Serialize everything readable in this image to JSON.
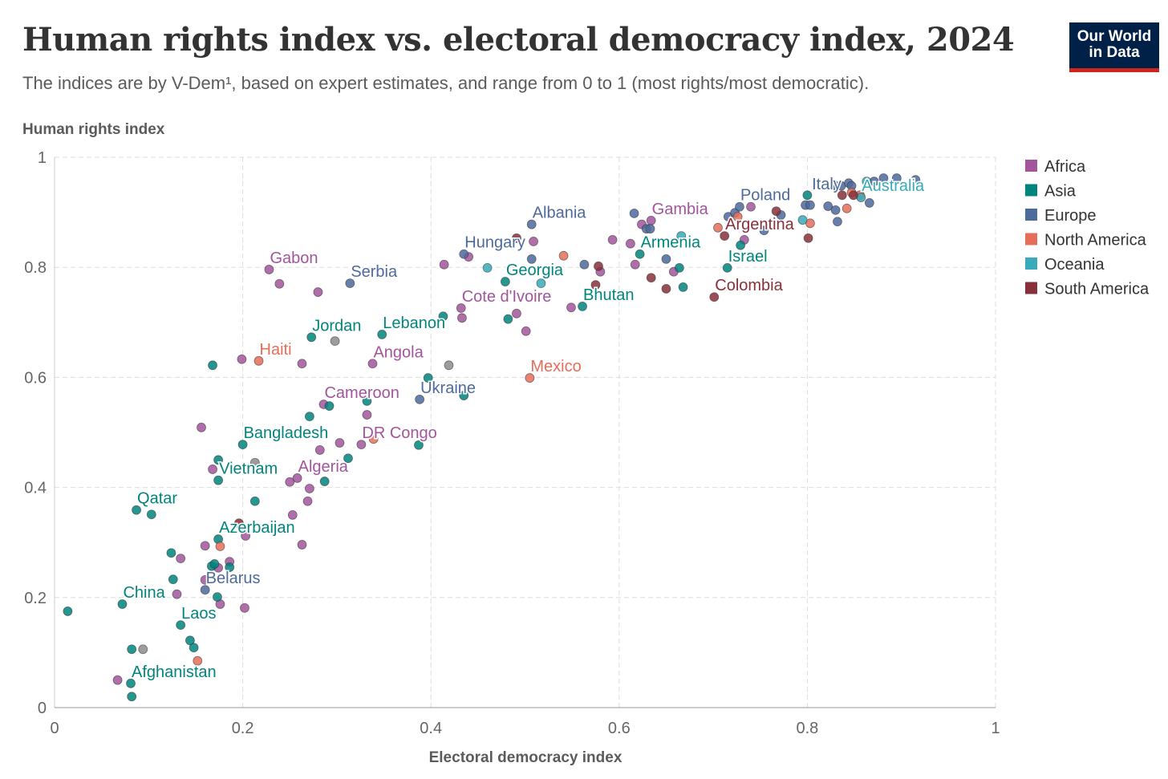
{
  "title": "Human rights index vs. electoral democracy index, 2024",
  "subtitle": "The indices are by V-Dem¹, based on expert estimates, and range from 0 to 1 (most rights/most democratic).",
  "logo": {
    "line1": "Our World",
    "line2": "in Data"
  },
  "chart_data": {
    "type": "scatter",
    "title": "Human rights index vs. electoral democracy index, 2024",
    "xlabel": "Electoral democracy index",
    "ylabel": "Human rights index",
    "xlim": [
      0,
      1
    ],
    "ylim": [
      0,
      1
    ],
    "xticks": [
      "0",
      "0.2",
      "0.4",
      "0.6",
      "0.8",
      "1"
    ],
    "yticks": [
      "0",
      "0.2",
      "0.4",
      "0.6",
      "0.8",
      "1"
    ],
    "grid": true,
    "legend_position": "right",
    "regions": [
      {
        "name": "Africa",
        "color": "#a2559c"
      },
      {
        "name": "Asia",
        "color": "#00847e"
      },
      {
        "name": "Europe",
        "color": "#4c6a9c"
      },
      {
        "name": "North America",
        "color": "#e56e5a"
      },
      {
        "name": "Oceania",
        "color": "#38aaba"
      },
      {
        "name": "South America",
        "color": "#883039"
      }
    ],
    "other_color": "#8c8c8c",
    "points": [
      {
        "r": "Africa",
        "x": 0.228,
        "y": 0.796,
        "label": "Gabon"
      },
      {
        "r": "Africa",
        "x": 0.239,
        "y": 0.77
      },
      {
        "r": "Africa",
        "x": 0.28,
        "y": 0.755
      },
      {
        "r": "Africa",
        "x": 0.199,
        "y": 0.633
      },
      {
        "r": "Africa",
        "x": 0.263,
        "y": 0.625
      },
      {
        "r": "Africa",
        "x": 0.338,
        "y": 0.625,
        "label": "Angola"
      },
      {
        "r": "Africa",
        "x": 0.156,
        "y": 0.509
      },
      {
        "r": "Africa",
        "x": 0.168,
        "y": 0.433
      },
      {
        "r": "Africa",
        "x": 0.286,
        "y": 0.551,
        "label": "Cameroon"
      },
      {
        "r": "Africa",
        "x": 0.332,
        "y": 0.532
      },
      {
        "r": "Africa",
        "x": 0.303,
        "y": 0.481
      },
      {
        "r": "Africa",
        "x": 0.326,
        "y": 0.478,
        "label": "DR Congo"
      },
      {
        "r": "Africa",
        "x": 0.282,
        "y": 0.468
      },
      {
        "r": "Africa",
        "x": 0.25,
        "y": 0.41
      },
      {
        "r": "Africa",
        "x": 0.258,
        "y": 0.417,
        "label": "Algeria"
      },
      {
        "r": "Africa",
        "x": 0.271,
        "y": 0.398
      },
      {
        "r": "Africa",
        "x": 0.269,
        "y": 0.375
      },
      {
        "r": "Africa",
        "x": 0.253,
        "y": 0.35
      },
      {
        "r": "Africa",
        "x": 0.203,
        "y": 0.312
      },
      {
        "r": "Africa",
        "x": 0.16,
        "y": 0.294
      },
      {
        "r": "Africa",
        "x": 0.263,
        "y": 0.296
      },
      {
        "r": "Africa",
        "x": 0.134,
        "y": 0.271
      },
      {
        "r": "Africa",
        "x": 0.186,
        "y": 0.265
      },
      {
        "r": "Africa",
        "x": 0.174,
        "y": 0.254
      },
      {
        "r": "Africa",
        "x": 0.16,
        "y": 0.232
      },
      {
        "r": "Africa",
        "x": 0.13,
        "y": 0.206
      },
      {
        "r": "Africa",
        "x": 0.176,
        "y": 0.188
      },
      {
        "r": "Africa",
        "x": 0.202,
        "y": 0.181
      },
      {
        "r": "Africa",
        "x": 0.067,
        "y": 0.05
      },
      {
        "r": "Africa",
        "x": 0.414,
        "y": 0.805
      },
      {
        "r": "Africa",
        "x": 0.44,
        "y": 0.819
      },
      {
        "r": "Africa",
        "x": 0.509,
        "y": 0.847
      },
      {
        "r": "Africa",
        "x": 0.432,
        "y": 0.726,
        "label": "Cote d'Ivoire"
      },
      {
        "r": "Africa",
        "x": 0.433,
        "y": 0.708
      },
      {
        "r": "Africa",
        "x": 0.491,
        "y": 0.716
      },
      {
        "r": "Africa",
        "x": 0.501,
        "y": 0.684
      },
      {
        "r": "Africa",
        "x": 0.549,
        "y": 0.727
      },
      {
        "r": "Africa",
        "x": 0.58,
        "y": 0.792
      },
      {
        "r": "Africa",
        "x": 0.593,
        "y": 0.85
      },
      {
        "r": "Africa",
        "x": 0.612,
        "y": 0.843
      },
      {
        "r": "Africa",
        "x": 0.617,
        "y": 0.805
      },
      {
        "r": "Africa",
        "x": 0.624,
        "y": 0.878
      },
      {
        "r": "Africa",
        "x": 0.634,
        "y": 0.885,
        "label": "Gambia"
      },
      {
        "r": "Africa",
        "x": 0.658,
        "y": 0.792
      },
      {
        "r": "Africa",
        "x": 0.733,
        "y": 0.85
      },
      {
        "r": "Africa",
        "x": 0.74,
        "y": 0.91
      },
      {
        "r": "Asia",
        "x": 0.014,
        "y": 0.175
      },
      {
        "r": "Asia",
        "x": 0.072,
        "y": 0.188,
        "label": "China"
      },
      {
        "r": "Asia",
        "x": 0.087,
        "y": 0.359,
        "label": "Qatar"
      },
      {
        "r": "Asia",
        "x": 0.103,
        "y": 0.351
      },
      {
        "r": "Asia",
        "x": 0.082,
        "y": 0.106
      },
      {
        "r": "Asia",
        "x": 0.081,
        "y": 0.044,
        "label": "Afghanistan"
      },
      {
        "r": "Asia",
        "x": 0.082,
        "y": 0.02
      },
      {
        "r": "Asia",
        "x": 0.124,
        "y": 0.281
      },
      {
        "r": "Asia",
        "x": 0.126,
        "y": 0.233
      },
      {
        "r": "Asia",
        "x": 0.134,
        "y": 0.15,
        "label": "Laos"
      },
      {
        "r": "Asia",
        "x": 0.144,
        "y": 0.122
      },
      {
        "r": "Asia",
        "x": 0.148,
        "y": 0.109
      },
      {
        "r": "Asia",
        "x": 0.168,
        "y": 0.622
      },
      {
        "r": "Asia",
        "x": 0.174,
        "y": 0.45
      },
      {
        "r": "Asia",
        "x": 0.174,
        "y": 0.413,
        "label": "Vietnam"
      },
      {
        "r": "Asia",
        "x": 0.174,
        "y": 0.306,
        "label": "Azerbaijan"
      },
      {
        "r": "Asia",
        "x": 0.167,
        "y": 0.257
      },
      {
        "r": "Asia",
        "x": 0.17,
        "y": 0.261
      },
      {
        "r": "Asia",
        "x": 0.186,
        "y": 0.255
      },
      {
        "r": "Asia",
        "x": 0.173,
        "y": 0.201
      },
      {
        "r": "Asia",
        "x": 0.2,
        "y": 0.478,
        "label": "Bangladesh"
      },
      {
        "r": "Asia",
        "x": 0.213,
        "y": 0.375
      },
      {
        "r": "Asia",
        "x": 0.271,
        "y": 0.529
      },
      {
        "r": "Asia",
        "x": 0.292,
        "y": 0.548
      },
      {
        "r": "Asia",
        "x": 0.287,
        "y": 0.411
      },
      {
        "r": "Asia",
        "x": 0.312,
        "y": 0.453
      },
      {
        "r": "Asia",
        "x": 0.273,
        "y": 0.673,
        "label": "Jordan"
      },
      {
        "r": "Asia",
        "x": 0.348,
        "y": 0.678,
        "label": "Lebanon"
      },
      {
        "r": "Asia",
        "x": 0.332,
        "y": 0.557
      },
      {
        "r": "Asia",
        "x": 0.387,
        "y": 0.477
      },
      {
        "r": "Asia",
        "x": 0.397,
        "y": 0.599
      },
      {
        "r": "Asia",
        "x": 0.435,
        "y": 0.567
      },
      {
        "r": "Asia",
        "x": 0.413,
        "y": 0.711
      },
      {
        "r": "Asia",
        "x": 0.479,
        "y": 0.774,
        "label": "Georgia"
      },
      {
        "r": "Asia",
        "x": 0.482,
        "y": 0.706
      },
      {
        "r": "Asia",
        "x": 0.561,
        "y": 0.729,
        "label": "Bhutan"
      },
      {
        "r": "Asia",
        "x": 0.622,
        "y": 0.824,
        "label": "Armenia"
      },
      {
        "r": "Asia",
        "x": 0.664,
        "y": 0.799
      },
      {
        "r": "Asia",
        "x": 0.668,
        "y": 0.764
      },
      {
        "r": "Asia",
        "x": 0.715,
        "y": 0.799,
        "label": "Israel"
      },
      {
        "r": "Asia",
        "x": 0.729,
        "y": 0.84
      },
      {
        "r": "Asia",
        "x": 0.8,
        "y": 0.931
      },
      {
        "r": "Europe",
        "x": 0.16,
        "y": 0.214,
        "label": "Belarus"
      },
      {
        "r": "Europe",
        "x": 0.314,
        "y": 0.771,
        "label": "Serbia"
      },
      {
        "r": "Europe",
        "x": 0.388,
        "y": 0.56,
        "label": "Ukraine"
      },
      {
        "r": "Europe",
        "x": 0.435,
        "y": 0.824,
        "label": "Hungary"
      },
      {
        "r": "Europe",
        "x": 0.507,
        "y": 0.878,
        "label": "Albania"
      },
      {
        "r": "Europe",
        "x": 0.507,
        "y": 0.815
      },
      {
        "r": "Europe",
        "x": 0.563,
        "y": 0.805
      },
      {
        "r": "Europe",
        "x": 0.616,
        "y": 0.898
      },
      {
        "r": "Europe",
        "x": 0.629,
        "y": 0.87
      },
      {
        "r": "Europe",
        "x": 0.633,
        "y": 0.87
      },
      {
        "r": "Europe",
        "x": 0.65,
        "y": 0.815
      },
      {
        "r": "Europe",
        "x": 0.716,
        "y": 0.892
      },
      {
        "r": "Europe",
        "x": 0.723,
        "y": 0.899
      },
      {
        "r": "Europe",
        "x": 0.728,
        "y": 0.91,
        "label": "Poland"
      },
      {
        "r": "Europe",
        "x": 0.754,
        "y": 0.867
      },
      {
        "r": "Europe",
        "x": 0.772,
        "y": 0.895
      },
      {
        "r": "Europe",
        "x": 0.798,
        "y": 0.913
      },
      {
        "r": "Europe",
        "x": 0.803,
        "y": 0.913
      },
      {
        "r": "Europe",
        "x": 0.822,
        "y": 0.911
      },
      {
        "r": "Europe",
        "x": 0.83,
        "y": 0.904
      },
      {
        "r": "Europe",
        "x": 0.832,
        "y": 0.883
      },
      {
        "r": "Europe",
        "x": 0.829,
        "y": 0.949
      },
      {
        "r": "Europe",
        "x": 0.836,
        "y": 0.948
      },
      {
        "r": "Europe",
        "x": 0.844,
        "y": 0.953
      },
      {
        "r": "Europe",
        "x": 0.847,
        "y": 0.948
      },
      {
        "r": "Europe",
        "x": 0.866,
        "y": 0.917
      },
      {
        "r": "Europe",
        "x": 0.871,
        "y": 0.956
      },
      {
        "r": "Europe",
        "x": 0.881,
        "y": 0.962
      },
      {
        "r": "Europe",
        "x": 0.895,
        "y": 0.962
      },
      {
        "r": "Europe",
        "x": 0.915,
        "y": 0.959
      },
      {
        "r": "North America",
        "x": 0.217,
        "y": 0.63,
        "label": "Haiti"
      },
      {
        "r": "North America",
        "x": 0.176,
        "y": 0.293
      },
      {
        "r": "North America",
        "x": 0.152,
        "y": 0.085
      },
      {
        "r": "North America",
        "x": 0.339,
        "y": 0.488
      },
      {
        "r": "North America",
        "x": 0.505,
        "y": 0.599,
        "label": "Mexico"
      },
      {
        "r": "North America",
        "x": 0.541,
        "y": 0.821
      },
      {
        "r": "North America",
        "x": 0.705,
        "y": 0.872
      },
      {
        "r": "North America",
        "x": 0.726,
        "y": 0.892
      },
      {
        "r": "North America",
        "x": 0.803,
        "y": 0.88
      },
      {
        "r": "North America",
        "x": 0.842,
        "y": 0.907
      },
      {
        "r": "North America",
        "x": 0.847,
        "y": 0.936
      },
      {
        "r": "North America",
        "x": 0.856,
        "y": 0.931
      },
      {
        "r": "Oceania",
        "x": 0.46,
        "y": 0.799
      },
      {
        "r": "Oceania",
        "x": 0.517,
        "y": 0.771
      },
      {
        "r": "Oceania",
        "x": 0.666,
        "y": 0.857
      },
      {
        "r": "Oceania",
        "x": 0.795,
        "y": 0.886
      },
      {
        "r": "Oceania",
        "x": 0.857,
        "y": 0.927,
        "label": "Australia"
      },
      {
        "r": "Oceania",
        "x": 0.863,
        "y": 0.956
      },
      {
        "r": "South America",
        "x": 0.196,
        "y": 0.335
      },
      {
        "r": "South America",
        "x": 0.491,
        "y": 0.853
      },
      {
        "r": "South America",
        "x": 0.578,
        "y": 0.802
      },
      {
        "r": "South America",
        "x": 0.575,
        "y": 0.768
      },
      {
        "r": "South America",
        "x": 0.634,
        "y": 0.781
      },
      {
        "r": "South America",
        "x": 0.65,
        "y": 0.761
      },
      {
        "r": "South America",
        "x": 0.701,
        "y": 0.746,
        "label": "Colombia"
      },
      {
        "r": "South America",
        "x": 0.712,
        "y": 0.857,
        "label": "Argentina"
      },
      {
        "r": "South America",
        "x": 0.767,
        "y": 0.902
      },
      {
        "r": "South America",
        "x": 0.801,
        "y": 0.853
      },
      {
        "r": "South America",
        "x": 0.837,
        "y": 0.931
      },
      {
        "r": "South America",
        "x": 0.849,
        "y": 0.931
      },
      {
        "r": "",
        "x": 0.094,
        "y": 0.106
      },
      {
        "r": "",
        "x": 0.213,
        "y": 0.445
      },
      {
        "r": "",
        "x": 0.298,
        "y": 0.666
      },
      {
        "r": "",
        "x": 0.419,
        "y": 0.622
      },
      {
        "r": "Europe",
        "x": 0.804,
        "y": 0.93,
        "label": "Italy",
        "hide_point": true
      }
    ]
  }
}
